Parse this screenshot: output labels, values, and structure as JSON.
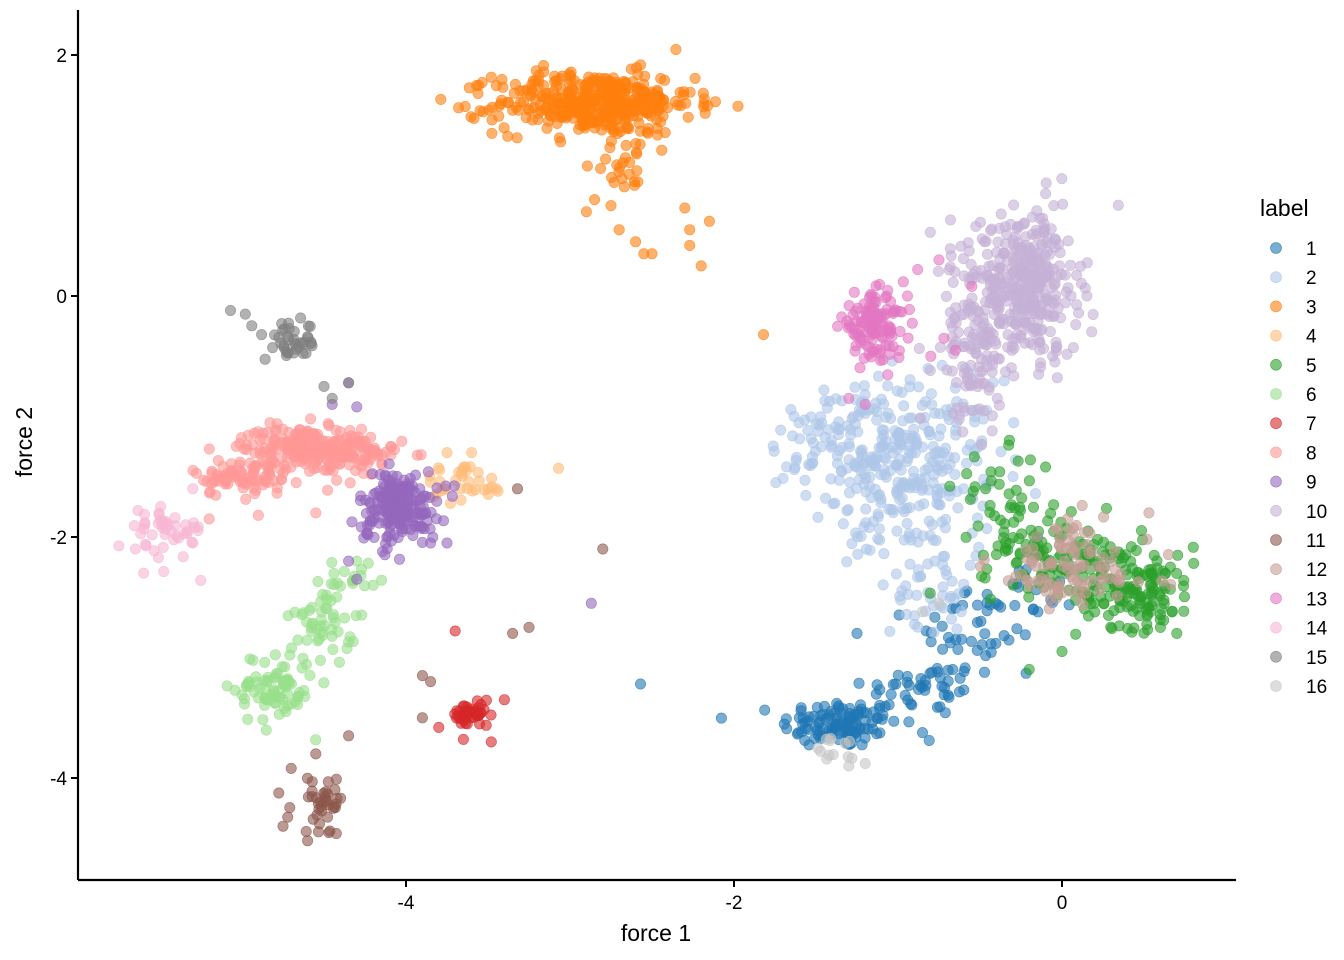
{
  "chart_data": {
    "type": "scatter",
    "xlabel": "force 1",
    "ylabel": "force 2",
    "xlim": [
      -6.0,
      1.05
    ],
    "ylim": [
      -4.85,
      2.35
    ],
    "x_ticks": [
      -4,
      -2,
      0
    ],
    "y_ticks": [
      2,
      0,
      -2,
      -4
    ],
    "x_tick_labels": [
      "-4",
      "-2",
      "0"
    ],
    "y_tick_labels": [
      "2",
      "0",
      "-2",
      "-4"
    ],
    "grid": false,
    "legend": {
      "title": "label",
      "placement": "right"
    },
    "point_opacity": 0.6,
    "series": [
      {
        "name": "1",
        "color": "#1f77b4",
        "clusters": [
          [
            -1.35,
            -3.55,
            0.18,
            0.1,
            120
          ],
          [
            -0.85,
            -3.25,
            0.18,
            0.12,
            40
          ],
          [
            -0.5,
            -2.85,
            0.2,
            0.2,
            40
          ],
          [
            -0.3,
            -2.5,
            0.2,
            0.15,
            20
          ]
        ],
        "points": [
          [
            -2.57,
            -3.22
          ],
          [
            -1.25,
            -2.8
          ],
          [
            -0.15,
            -2.0
          ]
        ]
      },
      {
        "name": "2",
        "color": "#aec7e8",
        "clusters": [
          [
            -1.0,
            -1.3,
            0.3,
            0.3,
            260
          ],
          [
            -0.9,
            -1.9,
            0.2,
            0.3,
            80
          ],
          [
            -0.8,
            -2.5,
            0.12,
            0.15,
            30
          ],
          [
            -1.35,
            -1.1,
            0.18,
            0.15,
            40
          ]
        ],
        "points": []
      },
      {
        "name": "3",
        "color": "#ff7f0e",
        "clusters": [
          [
            -2.85,
            1.6,
            0.3,
            0.13,
            420
          ],
          [
            -2.65,
            1.1,
            0.1,
            0.12,
            25
          ]
        ],
        "points": [
          [
            -2.9,
            0.7
          ],
          [
            -2.85,
            0.8
          ],
          [
            -2.75,
            0.75
          ],
          [
            -2.7,
            0.55
          ],
          [
            -2.6,
            0.45
          ],
          [
            -2.5,
            0.35
          ],
          [
            -2.55,
            0.35
          ],
          [
            -2.3,
            0.73
          ],
          [
            -2.27,
            0.55
          ],
          [
            -2.27,
            0.42
          ],
          [
            -2.15,
            0.62
          ],
          [
            -2.2,
            0.25
          ],
          [
            -1.82,
            -0.32
          ]
        ]
      },
      {
        "name": "4",
        "color": "#ffbb78",
        "clusters": [
          [
            -3.65,
            -1.55,
            0.13,
            0.08,
            35
          ]
        ],
        "points": [
          [
            -3.07,
            -1.43
          ],
          [
            -3.45,
            -1.6
          ],
          [
            -3.6,
            -1.3
          ],
          [
            -3.75,
            -1.3
          ]
        ]
      },
      {
        "name": "5",
        "color": "#2ca02c",
        "clusters": [
          [
            0.45,
            -2.45,
            0.18,
            0.15,
            130
          ],
          [
            0.0,
            -2.15,
            0.25,
            0.15,
            120
          ],
          [
            -0.35,
            -1.7,
            0.15,
            0.2,
            40
          ]
        ],
        "points": [
          [
            0.0,
            -2.95
          ],
          [
            -0.2,
            -3.1
          ],
          [
            0.6,
            -2.75
          ],
          [
            0.7,
            -2.8
          ]
        ]
      },
      {
        "name": "6",
        "color": "#98df8a",
        "clusters": [
          [
            -4.8,
            -3.25,
            0.12,
            0.15,
            80
          ],
          [
            -4.5,
            -2.7,
            0.1,
            0.15,
            50
          ],
          [
            -4.35,
            -2.35,
            0.07,
            0.1,
            15
          ]
        ],
        "points": [
          [
            -4.2,
            -2.4
          ],
          [
            -4.3,
            -2.2
          ]
        ]
      },
      {
        "name": "7",
        "color": "#d62728",
        "clusters": [
          [
            -3.6,
            -3.48,
            0.06,
            0.05,
            45
          ]
        ],
        "points": [
          [
            -3.7,
            -2.78
          ],
          [
            -3.48,
            -3.7
          ],
          [
            -3.4,
            -3.35
          ],
          [
            -3.8,
            -3.58
          ],
          [
            -3.65,
            -3.68
          ]
        ]
      },
      {
        "name": "8",
        "color": "#ff9896",
        "clusters": [
          [
            -4.6,
            -1.25,
            0.2,
            0.08,
            200
          ],
          [
            -5.0,
            -1.5,
            0.15,
            0.08,
            80
          ],
          [
            -4.3,
            -1.35,
            0.15,
            0.1,
            60
          ]
        ],
        "points": [
          [
            -5.2,
            -1.85
          ],
          [
            -4.9,
            -1.82
          ],
          [
            -4.55,
            -1.8
          ],
          [
            -4.6,
            -1.12
          ]
        ]
      },
      {
        "name": "9",
        "color": "#9467bd",
        "clusters": [
          [
            -4.05,
            -1.75,
            0.12,
            0.15,
            200
          ]
        ],
        "points": [
          [
            -2.87,
            -2.55
          ],
          [
            -4.45,
            -0.9
          ],
          [
            -4.3,
            -0.92
          ],
          [
            -4.35,
            -0.72
          ],
          [
            -4.3,
            -2.35
          ],
          [
            -4.35,
            -2.2
          ],
          [
            -3.75,
            -2.05
          ],
          [
            -3.85,
            -2.05
          ]
        ]
      },
      {
        "name": "10",
        "color": "#c5b0d5",
        "clusters": [
          [
            -0.2,
            0.1,
            0.15,
            0.3,
            330
          ],
          [
            -0.5,
            -0.5,
            0.12,
            0.3,
            100
          ],
          [
            -0.6,
            0.0,
            0.1,
            0.3,
            50
          ]
        ],
        "points": [
          [
            -0.1,
            0.85
          ],
          [
            -0.05,
            0.75
          ]
        ]
      },
      {
        "name": "11",
        "color": "#8c564b",
        "clusters": [
          [
            -4.5,
            -4.22,
            0.1,
            0.12,
            40
          ]
        ],
        "points": [
          [
            -4.7,
            -3.92
          ],
          [
            -4.55,
            -3.8
          ],
          [
            -4.35,
            -3.65
          ],
          [
            -4.75,
            -4.4
          ],
          [
            -4.6,
            -4.52
          ],
          [
            -3.9,
            -3.5
          ],
          [
            -3.85,
            -3.2
          ],
          [
            -3.9,
            -3.15
          ],
          [
            -3.35,
            -2.8
          ],
          [
            -3.25,
            -2.75
          ],
          [
            -2.8,
            -2.1
          ],
          [
            -3.32,
            -1.6
          ]
        ]
      },
      {
        "name": "12",
        "color": "#c49c94",
        "clusters": [
          [
            0.05,
            -2.25,
            0.25,
            0.2,
            100
          ]
        ],
        "points": []
      },
      {
        "name": "13",
        "color": "#e377c2",
        "clusters": [
          [
            -1.15,
            -0.25,
            0.1,
            0.13,
            120
          ]
        ],
        "points": [
          [
            -0.75,
            0.3
          ],
          [
            -0.88,
            0.22
          ],
          [
            -0.72,
            -0.35
          ],
          [
            -0.65,
            -0.45
          ],
          [
            -0.8,
            -0.5
          ],
          [
            -1.3,
            -0.85
          ],
          [
            -1.2,
            -0.9
          ],
          [
            -0.55,
            0.08
          ]
        ]
      },
      {
        "name": "14",
        "color": "#f7b6d2",
        "clusters": [
          [
            -5.45,
            -1.95,
            0.12,
            0.12,
            45
          ]
        ],
        "points": [
          [
            -5.6,
            -2.3
          ],
          [
            -5.65,
            -2.1
          ],
          [
            -5.3,
            -2.05
          ],
          [
            -5.3,
            -1.6
          ]
        ]
      },
      {
        "name": "15",
        "color": "#7f7f7f",
        "clusters": [
          [
            -4.7,
            -0.38,
            0.08,
            0.08,
            40
          ]
        ],
        "points": [
          [
            -5.07,
            -0.12
          ],
          [
            -4.98,
            -0.15
          ],
          [
            -4.5,
            -0.75
          ],
          [
            -4.45,
            -0.85
          ],
          [
            -4.35,
            -0.72
          ]
        ]
      },
      {
        "name": "16",
        "color": "#c7c7c7",
        "clusters": [
          [
            -1.4,
            -3.8,
            0.1,
            0.06,
            12
          ]
        ],
        "points": [
          [
            -1.3,
            -3.9
          ],
          [
            -1.2,
            -3.88
          ],
          [
            -0.85,
            -2.62
          ],
          [
            -0.75,
            -2.55
          ]
        ]
      }
    ]
  }
}
